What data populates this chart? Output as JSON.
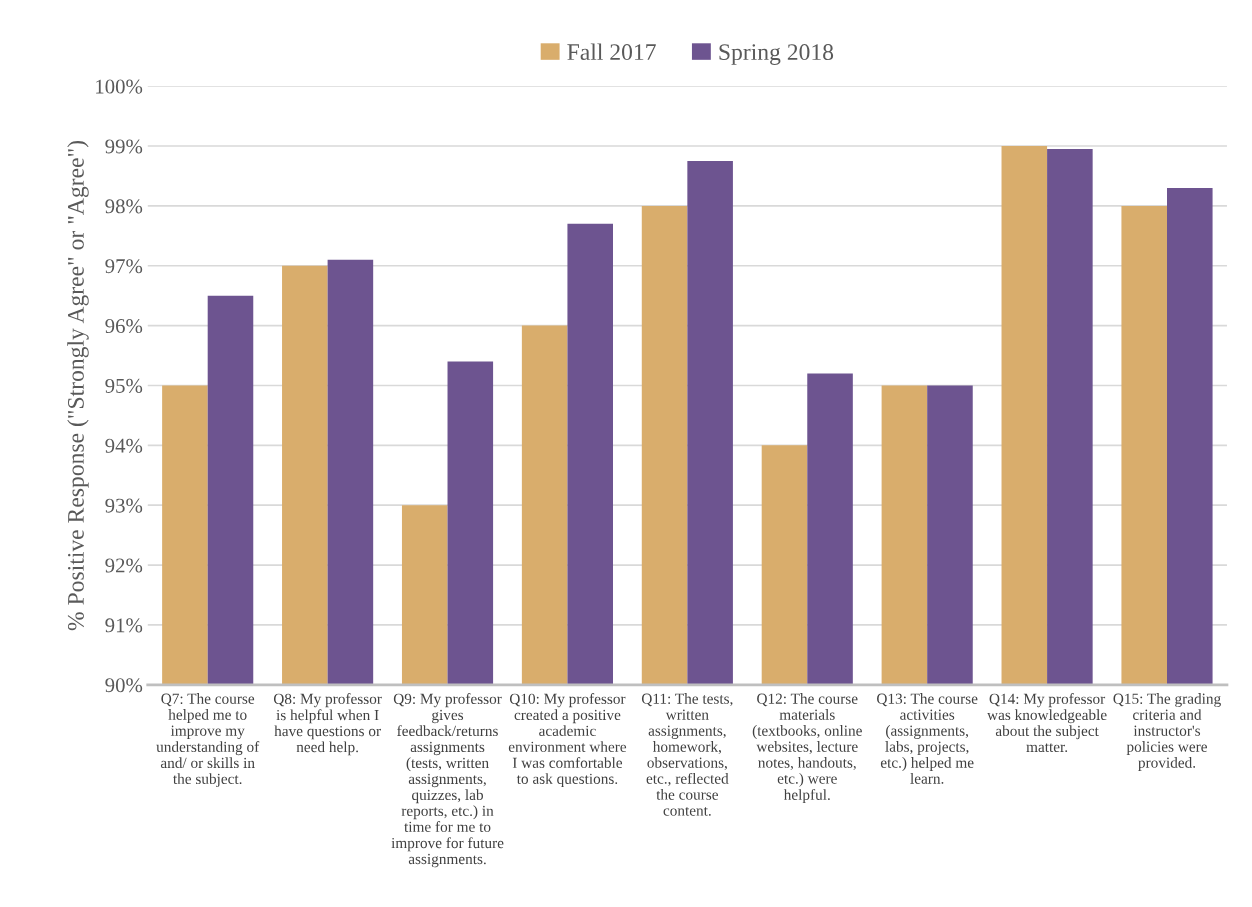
{
  "chart_data": {
    "type": "bar",
    "ylabel": "% Positive Response (\"Strongly Agree\" or \"Agree\")",
    "categories": [
      "Q7: The course helped me to improve my understanding of and/ or skills in the subject.",
      "Q8: My professor is helpful when I have questions or need help.",
      "Q9: My professor gives feedback/returns assignments (tests, written assignments, quizzes, lab reports, etc.) in time for me to improve for future assignments.",
      "Q10: My professor created a positive academic environment where I was comfortable to ask questions.",
      "Q11: The tests, written assignments, homework, observations, etc., reflected the course content.",
      "Q12: The course materials (textbooks, online websites, lecture notes, handouts, etc.) were helpful.",
      "Q13: The course activities (assignments, labs, projects, etc.) helped me learn.",
      "Q14: My professor was knowledgeable about the subject matter.",
      "Q15: The grading criteria and instructor's policies were provided."
    ],
    "series": [
      {
        "name": "Fall 2017",
        "color": "#d9ad6c",
        "values": [
          95,
          97,
          93,
          96,
          98,
          94,
          95,
          99,
          98
        ]
      },
      {
        "name": "Spring 2018",
        "color": "#6d5490",
        "values": [
          96.5,
          97.1,
          95.4,
          97.7,
          98.75,
          95.2,
          95.0,
          98.95,
          98.3
        ]
      }
    ],
    "ylim": [
      90,
      100
    ],
    "yticks": [
      {
        "value": 90,
        "label": "90%"
      },
      {
        "value": 91,
        "label": "91%"
      },
      {
        "value": 92,
        "label": "92%"
      },
      {
        "value": 93,
        "label": "93%"
      },
      {
        "value": 94,
        "label": "94%"
      },
      {
        "value": 95,
        "label": "95%"
      },
      {
        "value": 96,
        "label": "96%"
      },
      {
        "value": 97,
        "label": "97%"
      },
      {
        "value": 98,
        "label": "98%"
      },
      {
        "value": 99,
        "label": "99%"
      },
      {
        "value": 100,
        "label": "100%"
      }
    ],
    "grid": "y",
    "legend": "top"
  }
}
